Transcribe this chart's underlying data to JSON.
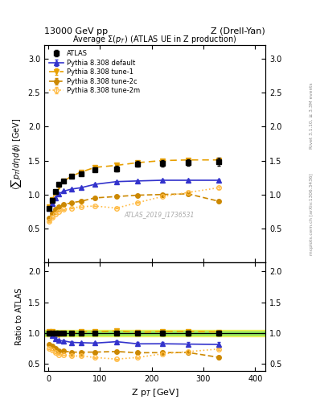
{
  "title_top_left": "13000 GeV pp",
  "title_top_right": "Z (Drell-Yan)",
  "main_title": "Average Σ(p_{T}) (ATLAS UE in Z production)",
  "watermark": "ATLAS_2019_I1736531",
  "right_label_top": "Rivet 3.1.10, ≥ 3.3M events",
  "right_label_bot": "mcplots.cern.ch [arXiv:1306.3436]",
  "ylabel_main": "<sum p_{T}/dη dϕ> [GeV]",
  "ylabel_ratio": "Ratio to ATLAS",
  "xlabel": "Z p_{T} [GeV]",
  "ylim_main": [
    0.0,
    3.2
  ],
  "ylim_ratio": [
    0.39,
    2.15
  ],
  "xlim": [
    -8,
    420
  ],
  "xticks": [
    0,
    100,
    200,
    300,
    400
  ],
  "atlas_x": [
    2,
    7,
    13,
    20,
    30,
    45,
    63,
    90,
    132,
    173,
    220,
    270,
    330
  ],
  "atlas_y": [
    0.8,
    0.91,
    1.04,
    1.15,
    1.2,
    1.27,
    1.3,
    1.37,
    1.38,
    1.45,
    1.46,
    1.47,
    1.48
  ],
  "atlas_yerr": [
    0.02,
    0.02,
    0.02,
    0.02,
    0.02,
    0.02,
    0.02,
    0.03,
    0.04,
    0.04,
    0.05,
    0.05,
    0.06
  ],
  "py_default_x": [
    2,
    7,
    13,
    20,
    30,
    45,
    63,
    90,
    132,
    173,
    220,
    270,
    330
  ],
  "py_default_y": [
    0.8,
    0.87,
    0.95,
    1.01,
    1.05,
    1.08,
    1.1,
    1.15,
    1.19,
    1.2,
    1.21,
    1.21,
    1.21
  ],
  "py_default_yerr": [
    0.004,
    0.004,
    0.004,
    0.004,
    0.004,
    0.004,
    0.004,
    0.005,
    0.007,
    0.008,
    0.01,
    0.01,
    0.015
  ],
  "py_tune1_x": [
    2,
    7,
    13,
    20,
    30,
    45,
    63,
    90,
    132,
    173,
    220,
    270,
    330
  ],
  "py_tune1_y": [
    0.82,
    0.93,
    1.02,
    1.12,
    1.2,
    1.27,
    1.33,
    1.4,
    1.43,
    1.47,
    1.5,
    1.51,
    1.51
  ],
  "py_tune1_yerr": [
    0.004,
    0.004,
    0.004,
    0.004,
    0.004,
    0.004,
    0.004,
    0.005,
    0.007,
    0.008,
    0.01,
    0.01,
    0.015
  ],
  "py_tune2c_x": [
    2,
    7,
    13,
    20,
    30,
    45,
    63,
    90,
    132,
    173,
    220,
    270,
    330
  ],
  "py_tune2c_y": [
    0.65,
    0.72,
    0.78,
    0.82,
    0.85,
    0.88,
    0.9,
    0.95,
    0.97,
    0.99,
    1.0,
    1.01,
    0.9
  ],
  "py_tune2c_yerr": [
    0.004,
    0.004,
    0.004,
    0.004,
    0.004,
    0.004,
    0.004,
    0.005,
    0.007,
    0.008,
    0.01,
    0.01,
    0.015
  ],
  "py_tune2m_x": [
    2,
    7,
    13,
    20,
    30,
    45,
    63,
    90,
    132,
    173,
    220,
    270,
    330
  ],
  "py_tune2m_y": [
    0.6,
    0.66,
    0.71,
    0.75,
    0.78,
    0.8,
    0.82,
    0.83,
    0.8,
    0.88,
    0.97,
    1.03,
    1.1
  ],
  "py_tune2m_yerr": [
    0.004,
    0.004,
    0.004,
    0.004,
    0.004,
    0.004,
    0.004,
    0.005,
    0.007,
    0.008,
    0.01,
    0.01,
    0.015
  ],
  "color_atlas": "#000000",
  "color_blue": "#3333cc",
  "color_orange1": "#e8a000",
  "color_orange2c": "#cc8800",
  "color_orange2m": "#ffbb44",
  "atlas_band_inner_color": "#44cc44",
  "atlas_band_inner_alpha": 0.5,
  "atlas_band_outer_color": "#ddee00",
  "atlas_band_outer_alpha": 0.55,
  "ratio_yticks": [
    0.5,
    1.0,
    1.5,
    2.0
  ],
  "main_yticks": [
    0.5,
    1.0,
    1.5,
    2.0,
    2.5,
    3.0
  ]
}
